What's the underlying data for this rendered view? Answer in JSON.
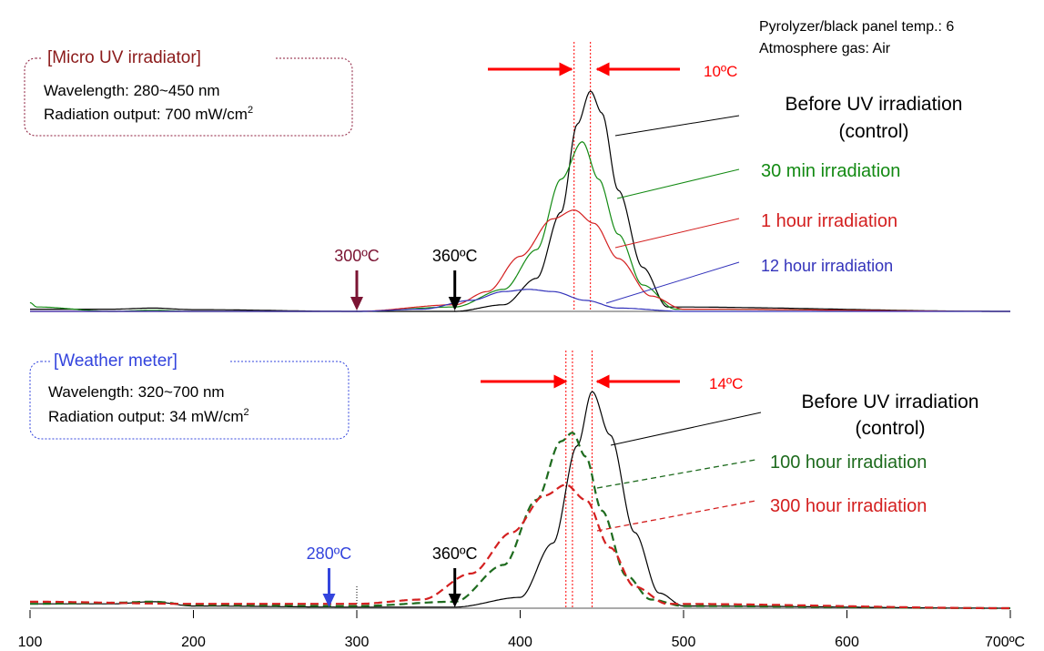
{
  "chart_data": {
    "type": "line",
    "x_unit": "ºC",
    "xlim": [
      100,
      700
    ],
    "xticks": [
      "100",
      "200",
      "300",
      "400",
      "500",
      "600",
      "700ºC"
    ],
    "header_lines": [
      "Pyrolyzer/black panel temp.: 6",
      "Atmosphere gas: Air"
    ],
    "panels": [
      {
        "id": "top",
        "box_title": "[Micro UV irradiator]",
        "box_lines": [
          {
            "text": "Wavelength: 280~450 nm",
            "sup": ""
          },
          {
            "text": "Radiation output: 700 mW/cm",
            "sup": "2"
          }
        ],
        "shift_label": "10ºC",
        "peak_lines_x": [
          433,
          443
        ],
        "markers": [
          {
            "label": "300ºC",
            "x": 300,
            "color": "#7b1433"
          },
          {
            "label": "360ºC",
            "x": 360,
            "color": "#000000"
          }
        ],
        "series": [
          {
            "name": "Before UV irradiation\n(control)",
            "color": "#000000",
            "dashed": false,
            "values": [
              [
                100,
                0.01
              ],
              [
                150,
                0.01
              ],
              [
                175,
                0.015
              ],
              [
                200,
                0.008
              ],
              [
                300,
                0.0
              ],
              [
                360,
                0.0
              ],
              [
                390,
                0.03
              ],
              [
                410,
                0.15
              ],
              [
                425,
                0.45
              ],
              [
                435,
                0.85
              ],
              [
                443,
                1.0
              ],
              [
                450,
                0.9
              ],
              [
                460,
                0.55
              ],
              [
                475,
                0.2
              ],
              [
                490,
                0.02
              ],
              [
                700,
                0.0
              ]
            ]
          },
          {
            "name": "30 min irradiation",
            "color": "#138a13",
            "dashed": false,
            "values": [
              [
                100,
                0.04
              ],
              [
                104,
                0.02
              ],
              [
                150,
                0.0
              ],
              [
                175,
                0.005
              ],
              [
                200,
                0.0
              ],
              [
                300,
                0.0
              ],
              [
                360,
                0.02
              ],
              [
                390,
                0.1
              ],
              [
                410,
                0.28
              ],
              [
                425,
                0.6
              ],
              [
                438,
                0.77
              ],
              [
                448,
                0.6
              ],
              [
                460,
                0.35
              ],
              [
                475,
                0.12
              ],
              [
                495,
                0.01
              ],
              [
                700,
                0.0
              ]
            ]
          },
          {
            "name": "1 hour irradiation",
            "color": "#d42020",
            "dashed": false,
            "values": [
              [
                100,
                0.0
              ],
              [
                300,
                0.0
              ],
              [
                360,
                0.03
              ],
              [
                380,
                0.09
              ],
              [
                400,
                0.25
              ],
              [
                420,
                0.42
              ],
              [
                433,
                0.46
              ],
              [
                445,
                0.4
              ],
              [
                460,
                0.24
              ],
              [
                480,
                0.07
              ],
              [
                500,
                0.01
              ],
              [
                700,
                0.0
              ]
            ]
          },
          {
            "name": "12 hour irradiation",
            "color": "#3333bb",
            "dashed": false,
            "values": [
              [
                100,
                0.0
              ],
              [
                300,
                0.0
              ],
              [
                340,
                0.01
              ],
              [
                370,
                0.05
              ],
              [
                390,
                0.09
              ],
              [
                405,
                0.1
              ],
              [
                420,
                0.09
              ],
              [
                440,
                0.05
              ],
              [
                460,
                0.015
              ],
              [
                500,
                0.0
              ],
              [
                700,
                0.0
              ]
            ]
          }
        ],
        "series_labels": [
          "Before UV irradiation",
          "(control)",
          "30 min irradiation",
          "1 hour irradiation",
          "12 hour irradiation"
        ]
      },
      {
        "id": "bottom",
        "box_title": "[Weather meter]",
        "box_lines": [
          {
            "text": "Wavelength: 320~700 nm",
            "sup": ""
          },
          {
            "text": "Radiation output: 34 mW/cm",
            "sup": "2"
          }
        ],
        "shift_label": "14ºC",
        "peak_lines_x": [
          428,
          432,
          444
        ],
        "markers": [
          {
            "label": "280ºC",
            "x": 283,
            "color": "#3344dd"
          },
          {
            "label": "360ºC",
            "x": 360,
            "color": "#000000"
          }
        ],
        "series": [
          {
            "name": "Before UV irradiation\n(control)",
            "color": "#000000",
            "dashed": false,
            "values": [
              [
                100,
                0.02
              ],
              [
                150,
                0.02
              ],
              [
                175,
                0.03
              ],
              [
                200,
                0.01
              ],
              [
                300,
                0.005
              ],
              [
                360,
                0.005
              ],
              [
                400,
                0.05
              ],
              [
                420,
                0.3
              ],
              [
                435,
                0.75
              ],
              [
                444,
                1.0
              ],
              [
                455,
                0.8
              ],
              [
                470,
                0.35
              ],
              [
                485,
                0.07
              ],
              [
                500,
                0.01
              ],
              [
                700,
                0.0
              ]
            ]
          },
          {
            "name": "100 hour irradiation",
            "color": "#1e6b1e",
            "dashed": true,
            "values": [
              [
                100,
                0.02
              ],
              [
                150,
                0.025
              ],
              [
                175,
                0.03
              ],
              [
                200,
                0.015
              ],
              [
                300,
                0.01
              ],
              [
                360,
                0.03
              ],
              [
                390,
                0.2
              ],
              [
                410,
                0.5
              ],
              [
                425,
                0.77
              ],
              [
                432,
                0.81
              ],
              [
                440,
                0.7
              ],
              [
                450,
                0.45
              ],
              [
                465,
                0.15
              ],
              [
                480,
                0.04
              ],
              [
                500,
                0.01
              ],
              [
                700,
                0.0
              ]
            ]
          },
          {
            "name": "300 hour irradiation",
            "color": "#d42020",
            "dashed": true,
            "values": [
              [
                100,
                0.03
              ],
              [
                200,
                0.02
              ],
              [
                300,
                0.02
              ],
              [
                340,
                0.04
              ],
              [
                370,
                0.16
              ],
              [
                395,
                0.35
              ],
              [
                415,
                0.52
              ],
              [
                428,
                0.57
              ],
              [
                440,
                0.5
              ],
              [
                455,
                0.28
              ],
              [
                470,
                0.1
              ],
              [
                490,
                0.02
              ],
              [
                700,
                0.0
              ]
            ]
          }
        ],
        "series_labels": [
          "Before UV irradiation",
          "(control)",
          "100 hour irradiation",
          "300 hour irradiation"
        ]
      }
    ]
  }
}
